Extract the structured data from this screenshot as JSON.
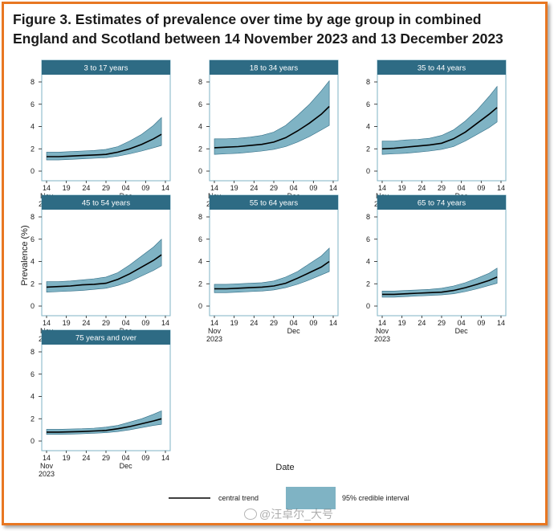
{
  "figure": {
    "title": "Figure 3. Estimates of prevalence over time by age group in combined England and Scotland between 14 November 2023 and 13 December 2023"
  },
  "watermark": {
    "text": "@汪卓尔_大号"
  },
  "colors": {
    "header": "#2e6b84",
    "band": "#7fb3c4",
    "band_edge": "#2e6b84",
    "line": "#000000",
    "panel_border": "#7fb3c4",
    "frame": "#e87722"
  },
  "chart_data": {
    "type": "area",
    "xlabel": "Date",
    "ylabel": "Prevalence (%)",
    "ylim": [
      0,
      8
    ],
    "yticks": [
      "0",
      "2",
      "4",
      "6",
      "8"
    ],
    "xlim": [
      14,
      44
    ],
    "xtick_positions": [
      14,
      19,
      24,
      29,
      34,
      39,
      44
    ],
    "xticks": [
      "14\nNov\n2023",
      "19",
      "24",
      "29",
      "04\nDec",
      "09",
      "14"
    ],
    "legend": {
      "position": "bottom",
      "line_label": "central trend",
      "band_label": "95% credible interval"
    },
    "x": [
      14,
      17,
      20,
      23,
      26,
      29,
      32,
      35,
      38,
      41,
      43
    ],
    "panels": [
      {
        "name": "3 to 17 years",
        "central": [
          1.3,
          1.3,
          1.35,
          1.4,
          1.45,
          1.5,
          1.7,
          2.0,
          2.4,
          2.9,
          3.3
        ],
        "lower": [
          1.0,
          1.0,
          1.05,
          1.1,
          1.15,
          1.2,
          1.35,
          1.55,
          1.8,
          2.1,
          2.3
        ],
        "upper": [
          1.7,
          1.7,
          1.75,
          1.8,
          1.85,
          1.95,
          2.2,
          2.7,
          3.3,
          4.1,
          4.8
        ]
      },
      {
        "name": "18 to 34 years",
        "central": [
          2.1,
          2.15,
          2.2,
          2.3,
          2.4,
          2.6,
          3.0,
          3.6,
          4.3,
          5.1,
          5.8
        ],
        "lower": [
          1.5,
          1.55,
          1.6,
          1.7,
          1.8,
          1.95,
          2.2,
          2.6,
          3.1,
          3.7,
          4.1
        ],
        "upper": [
          2.9,
          2.9,
          2.95,
          3.05,
          3.2,
          3.5,
          4.1,
          5.0,
          6.0,
          7.2,
          8.1
        ]
      },
      {
        "name": "35 to 44 years",
        "central": [
          2.0,
          2.05,
          2.15,
          2.25,
          2.35,
          2.5,
          2.9,
          3.5,
          4.3,
          5.1,
          5.7
        ],
        "lower": [
          1.5,
          1.55,
          1.6,
          1.7,
          1.8,
          1.95,
          2.2,
          2.7,
          3.3,
          3.9,
          4.4
        ],
        "upper": [
          2.7,
          2.7,
          2.8,
          2.85,
          2.95,
          3.2,
          3.7,
          4.5,
          5.5,
          6.7,
          7.6
        ]
      },
      {
        "name": "45 to 54 years",
        "central": [
          1.7,
          1.75,
          1.8,
          1.9,
          1.95,
          2.05,
          2.4,
          2.9,
          3.5,
          4.1,
          4.6
        ],
        "lower": [
          1.25,
          1.3,
          1.35,
          1.4,
          1.5,
          1.6,
          1.85,
          2.2,
          2.7,
          3.2,
          3.6
        ],
        "upper": [
          2.2,
          2.2,
          2.25,
          2.35,
          2.45,
          2.6,
          3.0,
          3.7,
          4.5,
          5.3,
          6.0
        ]
      },
      {
        "name": "55 to 64 years",
        "central": [
          1.55,
          1.55,
          1.6,
          1.65,
          1.7,
          1.8,
          2.05,
          2.5,
          3.0,
          3.5,
          4.0
        ],
        "lower": [
          1.2,
          1.2,
          1.25,
          1.3,
          1.35,
          1.45,
          1.65,
          1.95,
          2.35,
          2.8,
          3.1
        ],
        "upper": [
          1.95,
          1.95,
          2.0,
          2.05,
          2.1,
          2.25,
          2.6,
          3.1,
          3.8,
          4.5,
          5.2
        ]
      },
      {
        "name": "65 to 74 years",
        "central": [
          1.05,
          1.05,
          1.1,
          1.15,
          1.2,
          1.25,
          1.4,
          1.65,
          1.95,
          2.3,
          2.6
        ],
        "lower": [
          0.8,
          0.8,
          0.85,
          0.9,
          0.95,
          1.0,
          1.1,
          1.3,
          1.55,
          1.85,
          2.05
        ],
        "upper": [
          1.35,
          1.35,
          1.4,
          1.45,
          1.5,
          1.6,
          1.8,
          2.1,
          2.5,
          2.95,
          3.4
        ]
      },
      {
        "name": "75 years and over",
        "central": [
          0.8,
          0.8,
          0.82,
          0.85,
          0.9,
          0.95,
          1.1,
          1.3,
          1.55,
          1.8,
          2.0
        ],
        "lower": [
          0.6,
          0.6,
          0.62,
          0.65,
          0.7,
          0.75,
          0.85,
          1.0,
          1.2,
          1.4,
          1.5
        ],
        "upper": [
          1.05,
          1.05,
          1.08,
          1.1,
          1.15,
          1.25,
          1.4,
          1.7,
          2.0,
          2.4,
          2.7
        ]
      }
    ]
  }
}
